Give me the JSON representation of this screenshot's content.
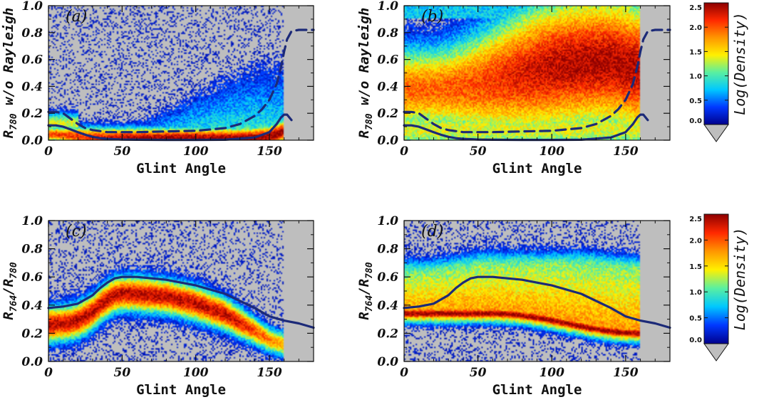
{
  "chart_data": [
    {
      "panel_label": "(a)",
      "type": "heatmap",
      "xlabel": "Glint Angle",
      "ylabel_main": "R",
      "ylabel_sub": "780",
      "ylabel_rest": " w/o Rayleigh",
      "xlim": [
        0,
        180
      ],
      "ylim": [
        0,
        1.0
      ],
      "xticks": [
        0,
        50,
        100,
        150
      ],
      "yticks": [
        "0.0",
        "0.2",
        "0.4",
        "0.6",
        "0.8",
        "1.0"
      ],
      "density": "cloud concentrated near 0.0–0.05 for glint 20–150, scattered points up to ~0.8 near 150",
      "series": [
        {
          "name": "solid",
          "style": "solid",
          "x": [
            0,
            5,
            10,
            15,
            20,
            25,
            30,
            35,
            40,
            50,
            60,
            80,
            100,
            120,
            140,
            150,
            155,
            158,
            160,
            162,
            165
          ],
          "y": [
            0.11,
            0.11,
            0.1,
            0.08,
            0.06,
            0.04,
            0.025,
            0.015,
            0.01,
            0.005,
            0.003,
            0.002,
            0.002,
            0.003,
            0.02,
            0.06,
            0.12,
            0.17,
            0.19,
            0.19,
            0.15
          ]
        },
        {
          "name": "dashed",
          "style": "dashed",
          "x": [
            0,
            5,
            10,
            15,
            20,
            25,
            30,
            40,
            50,
            60,
            80,
            100,
            120,
            130,
            140,
            145,
            150,
            155,
            158,
            160,
            162,
            165,
            170,
            180
          ],
          "y": [
            0.21,
            0.21,
            0.2,
            0.16,
            0.12,
            0.09,
            0.075,
            0.06,
            0.06,
            0.06,
            0.065,
            0.07,
            0.09,
            0.12,
            0.18,
            0.23,
            0.3,
            0.42,
            0.55,
            0.66,
            0.75,
            0.81,
            0.82,
            0.82
          ]
        }
      ]
    },
    {
      "panel_label": "(b)",
      "type": "heatmap",
      "xlabel": "Glint Angle",
      "ylabel_main": "R",
      "ylabel_sub": "780",
      "ylabel_rest": " w/o Rayleigh",
      "xlim": [
        0,
        180
      ],
      "ylim": [
        0,
        1.0
      ],
      "xticks": [
        0,
        50,
        100,
        150
      ],
      "yticks": [
        "0.0",
        "0.2",
        "0.4",
        "0.6",
        "0.8",
        "1.0"
      ],
      "density": "dense cloud spanning 0.0–1.0 from glint 0 to 160, peak density around 0.3–0.7",
      "series": [
        {
          "name": "solid",
          "style": "solid",
          "x": [
            0,
            5,
            10,
            15,
            20,
            25,
            30,
            35,
            40,
            50,
            60,
            80,
            100,
            120,
            140,
            150,
            155,
            158,
            160,
            162,
            165
          ],
          "y": [
            0.11,
            0.11,
            0.1,
            0.08,
            0.06,
            0.04,
            0.025,
            0.015,
            0.01,
            0.005,
            0.003,
            0.002,
            0.002,
            0.003,
            0.02,
            0.06,
            0.12,
            0.17,
            0.19,
            0.19,
            0.15
          ]
        },
        {
          "name": "dashed",
          "style": "dashed",
          "x": [
            0,
            5,
            10,
            15,
            20,
            25,
            30,
            40,
            50,
            60,
            80,
            100,
            120,
            130,
            140,
            145,
            150,
            155,
            158,
            160,
            162,
            165,
            170,
            180
          ],
          "y": [
            0.21,
            0.21,
            0.2,
            0.16,
            0.12,
            0.09,
            0.075,
            0.06,
            0.06,
            0.06,
            0.065,
            0.07,
            0.09,
            0.12,
            0.18,
            0.23,
            0.3,
            0.42,
            0.55,
            0.66,
            0.75,
            0.81,
            0.82,
            0.82
          ]
        }
      ]
    },
    {
      "panel_label": "(c)",
      "type": "heatmap",
      "xlabel": "Glint Angle",
      "ylabel_main": "R",
      "ylabel_sub": "764",
      "ylabel_mid": "/R",
      "ylabel_sub2": "780",
      "xlim": [
        0,
        180
      ],
      "ylim": [
        0,
        1.0
      ],
      "xticks": [
        0,
        50,
        100,
        150
      ],
      "yticks": [
        "0.0",
        "0.2",
        "0.4",
        "0.6",
        "0.8",
        "1.0"
      ],
      "density": "arched band from ~0.38 at 0 to ~0.5 at 50 to ~0.2 at 160",
      "series": [
        {
          "name": "solid",
          "style": "solid",
          "x": [
            0,
            10,
            20,
            30,
            35,
            40,
            45,
            50,
            60,
            80,
            100,
            120,
            140,
            150,
            160,
            170,
            180
          ],
          "y": [
            0.38,
            0.39,
            0.41,
            0.47,
            0.52,
            0.56,
            0.59,
            0.6,
            0.6,
            0.58,
            0.54,
            0.48,
            0.38,
            0.32,
            0.29,
            0.27,
            0.24
          ]
        }
      ]
    },
    {
      "panel_label": "(d)",
      "type": "heatmap",
      "xlabel": "Glint Angle",
      "ylabel_main": "R",
      "ylabel_sub": "764",
      "ylabel_mid": "/R",
      "ylabel_sub2": "780",
      "xlim": [
        0,
        180
      ],
      "ylim": [
        0,
        1.0
      ],
      "xticks": [
        0,
        50,
        100,
        150
      ],
      "yticks": [
        "0.0",
        "0.2",
        "0.4",
        "0.6",
        "0.8",
        "1.0"
      ],
      "density": "dense band from ~0.35 up to ~0.75 spanning glint 0–160, densest ridge near 0.32 declining to 0.15",
      "series": [
        {
          "name": "solid",
          "style": "solid",
          "x": [
            0,
            10,
            20,
            30,
            35,
            40,
            45,
            50,
            60,
            80,
            100,
            120,
            140,
            150,
            160,
            170,
            180
          ],
          "y": [
            0.38,
            0.39,
            0.41,
            0.47,
            0.52,
            0.56,
            0.59,
            0.6,
            0.6,
            0.58,
            0.54,
            0.48,
            0.38,
            0.32,
            0.29,
            0.27,
            0.24
          ]
        }
      ]
    }
  ],
  "colorbars": [
    {
      "label": "Log(Density)",
      "ticks": [
        "0.0",
        "0.5",
        "1.0",
        "1.5",
        "2.0",
        "2.5"
      ],
      "range": [
        0,
        2.5
      ]
    },
    {
      "label": "Log(Density)",
      "ticks": [
        "0.0",
        "0.5",
        "1.0",
        "1.5",
        "2.0",
        "2.5"
      ],
      "range": [
        0,
        2.5
      ]
    }
  ],
  "colors": {
    "background": "#bebebe",
    "line": "#1c2a78",
    "colormap": [
      "#00008c",
      "#0038ff",
      "#00c8ff",
      "#5af0a0",
      "#fff000",
      "#ff9600",
      "#ff2800",
      "#8c0000"
    ],
    "under": "#bebebe"
  }
}
